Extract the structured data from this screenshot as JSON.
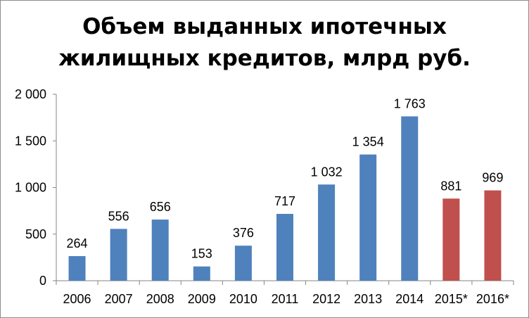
{
  "chart_data": {
    "type": "bar",
    "title_lines": [
      "Объем выданных ипотечных",
      "жилищных кредитов, млрд руб."
    ],
    "categories": [
      "2006",
      "2007",
      "2008",
      "2009",
      "2010",
      "2011",
      "2012",
      "2013",
      "2014",
      "2015*",
      "2016*"
    ],
    "values": [
      264,
      556,
      656,
      153,
      376,
      717,
      1032,
      1354,
      1763,
      881,
      969
    ],
    "value_labels": [
      "264",
      "556",
      "656",
      "153",
      "376",
      "717",
      "1 032",
      "1 354",
      "1 763",
      "881",
      "969"
    ],
    "bar_colors": [
      "#4f81bd",
      "#4f81bd",
      "#4f81bd",
      "#4f81bd",
      "#4f81bd",
      "#4f81bd",
      "#4f81bd",
      "#4f81bd",
      "#4f81bd",
      "#c0504d",
      "#c0504d"
    ],
    "yticks": [
      0,
      500,
      1000,
      1500,
      2000
    ],
    "ytick_labels": [
      "0",
      "500",
      "1 000",
      "1 500",
      "2 000"
    ],
    "ylim": [
      0,
      2000
    ],
    "grid": false,
    "legend": "none"
  }
}
